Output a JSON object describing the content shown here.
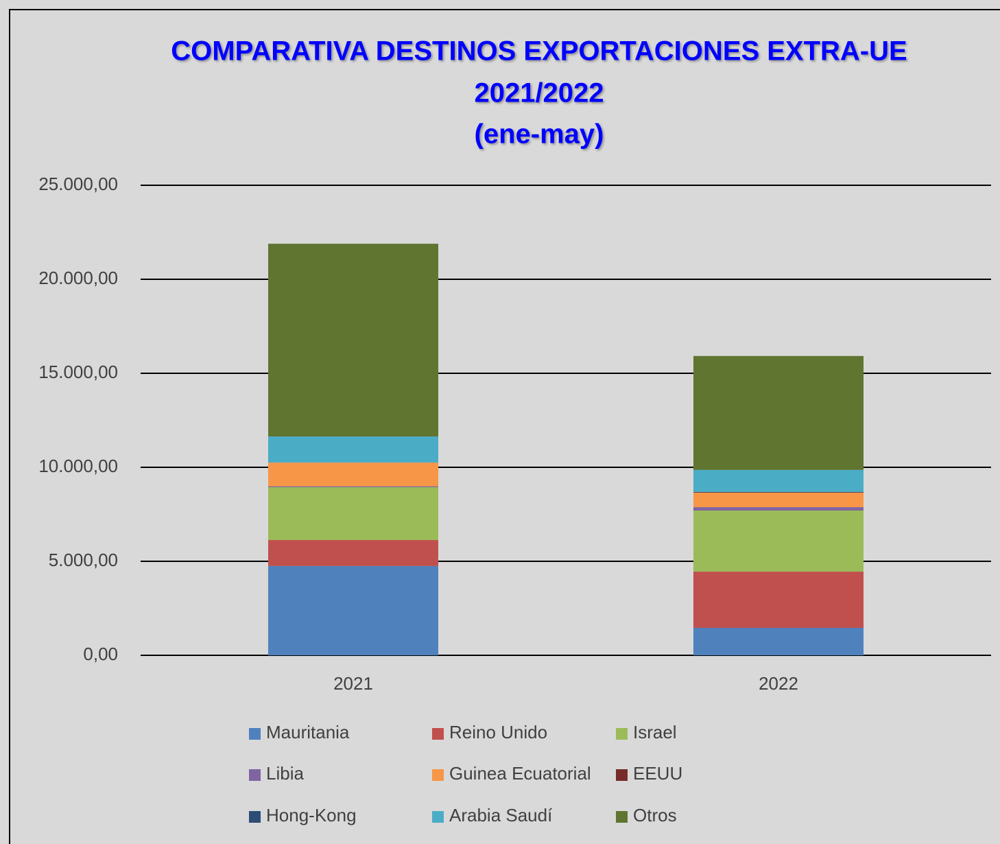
{
  "chart_data": {
    "type": "stacked_bar",
    "title": [
      "COMPARATIVA DESTINOS EXPORTACIONES EXTRA-UE",
      "2021/2022",
      "(ene-may)"
    ],
    "categories": [
      "2021",
      "2022"
    ],
    "series": [
      {
        "name": "Mauritania",
        "color": "#4f81bd",
        "values": [
          4750,
          1460
        ]
      },
      {
        "name": "Reino Unido",
        "color": "#c0504d",
        "values": [
          1380,
          2990
        ]
      },
      {
        "name": "Israel",
        "color": "#9bbb59",
        "values": [
          2810,
          3250
        ]
      },
      {
        "name": "Libia",
        "color": "#8064a2",
        "values": [
          50,
          180
        ]
      },
      {
        "name": "Guinea Ecuatorial",
        "color": "#f79646",
        "values": [
          1260,
          770
        ]
      },
      {
        "name": "EEUU",
        "color": "#772c2a",
        "values": [
          0,
          20
        ]
      },
      {
        "name": "Hong-Kong",
        "color": "#2c4d75",
        "values": [
          0,
          20
        ]
      },
      {
        "name": "Arabia Saudí",
        "color": "#4bacc6",
        "values": [
          1390,
          1170
        ]
      },
      {
        "name": "Otros",
        "color": "#5f7530",
        "values": [
          10250,
          6060
        ]
      }
    ],
    "ylim": [
      0,
      25000
    ],
    "yticks": [
      {
        "value": 0,
        "label": "0,00"
      },
      {
        "value": 5000,
        "label": "5.000,00"
      },
      {
        "value": 10000,
        "label": "10.000,00"
      },
      {
        "value": 15000,
        "label": "15.000,00"
      },
      {
        "value": 20000,
        "label": "20.000,00"
      },
      {
        "value": 25000,
        "label": "25.000,00"
      }
    ],
    "grid": true,
    "legend": "bottom"
  }
}
